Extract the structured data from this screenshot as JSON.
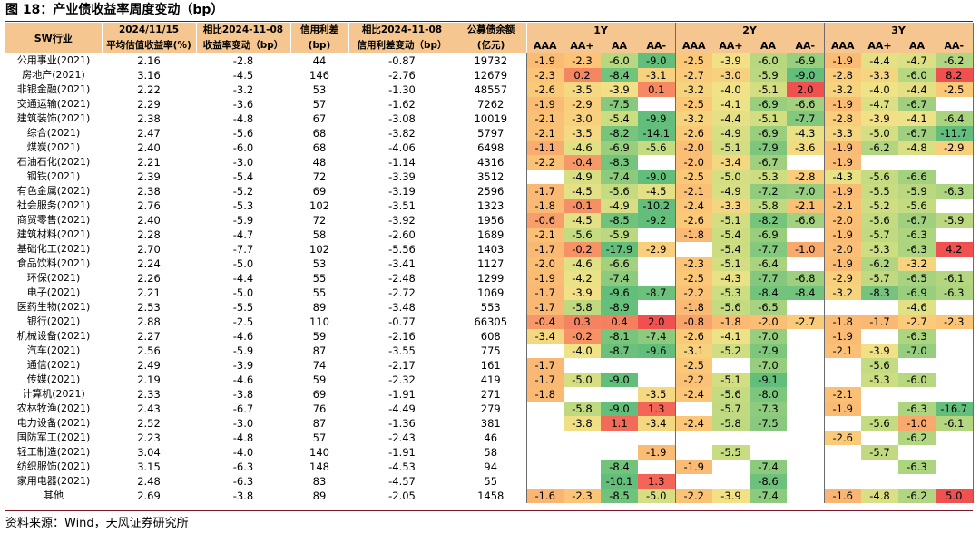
{
  "title": "图 18：产业债收益率周度变动（bp）",
  "source": "资料来源：Wind，天风证券研究所",
  "headers": {
    "industry": "SW行业",
    "col1_line1": "2024/11/15",
    "col1_line2": "平均估值收益率(%)",
    "col2_line1": "相比2024-11-08",
    "col2_line2": "收益率变动（bp）",
    "col3_line1": "信用利差",
    "col3_line2": "(bp)",
    "col4_line1": "相比2024-11-08",
    "col4_line2": "信用利差变动（bp）",
    "col5_line1": "公募债余额",
    "col5_line2": "(亿元)",
    "groups": [
      "1Y",
      "2Y",
      "3Y"
    ],
    "ratings": [
      "AAA",
      "AA+",
      "AA",
      "AA-"
    ]
  },
  "colors": {
    "header": "#f6c690",
    "green_strong": "#5cb85c",
    "yellow": "#f7e08a",
    "orange": "#f6b26b",
    "red": "#f04b4b",
    "rule": "#7a1426"
  },
  "rows": [
    {
      "name": "公用事业(2021)",
      "yield": "2.16",
      "ychg": "-2.8",
      "spread": "44",
      "schg": "-0.87",
      "balance": "19732",
      "y1": [
        "-1.9",
        "-2.3",
        "-6.0",
        "-9.0"
      ],
      "y2": [
        "-2.5",
        "-3.9",
        "-6.0",
        "-6.9"
      ],
      "y3": [
        "-1.9",
        "-4.4",
        "-4.7",
        "-6.2"
      ]
    },
    {
      "name": "房地产(2021)",
      "yield": "3.16",
      "ychg": "-4.5",
      "spread": "146",
      "schg": "-2.76",
      "balance": "12679",
      "y1": [
        "-2.3",
        "0.2",
        "-8.4",
        "-3.1"
      ],
      "y2": [
        "-2.7",
        "-3.0",
        "-5.9",
        "-9.0"
      ],
      "y3": [
        "-2.8",
        "-3.3",
        "-6.0",
        "8.2"
      ]
    },
    {
      "name": "非银金融(2021)",
      "yield": "2.22",
      "ychg": "-3.2",
      "spread": "53",
      "schg": "-1.30",
      "balance": "48557",
      "y1": [
        "-2.6",
        "-3.5",
        "-3.9",
        "0.1"
      ],
      "y2": [
        "-3.2",
        "-4.0",
        "-5.1",
        "2.0"
      ],
      "y3": [
        "-3.2",
        "-4.0",
        "-4.4",
        "-2.5"
      ]
    },
    {
      "name": "交通运输(2021)",
      "yield": "2.29",
      "ychg": "-3.6",
      "spread": "57",
      "schg": "-1.62",
      "balance": "7262",
      "y1": [
        "-1.9",
        "-2.9",
        "-7.5",
        ""
      ],
      "y2": [
        "-2.5",
        "-4.1",
        "-6.9",
        "-6.6"
      ],
      "y3": [
        "-1.9",
        "-4.7",
        "-6.7",
        ""
      ]
    },
    {
      "name": "建筑装饰(2021)",
      "yield": "2.38",
      "ychg": "-4.8",
      "spread": "67",
      "schg": "-3.08",
      "balance": "10019",
      "y1": [
        "-2.1",
        "-3.0",
        "-5.4",
        "-9.9"
      ],
      "y2": [
        "-3.2",
        "-4.4",
        "-5.1",
        "-7.7"
      ],
      "y3": [
        "-2.8",
        "-3.9",
        "-4.1",
        "-6.4"
      ]
    },
    {
      "name": "综合(2021)",
      "yield": "2.47",
      "ychg": "-5.6",
      "spread": "68",
      "schg": "-3.82",
      "balance": "5797",
      "y1": [
        "-2.1",
        "-3.5",
        "-8.2",
        "-14.1"
      ],
      "y2": [
        "-2.6",
        "-4.9",
        "-6.9",
        "-4.3"
      ],
      "y3": [
        "-3.3",
        "-5.0",
        "-6.7",
        "-11.7"
      ]
    },
    {
      "name": "煤炭(2021)",
      "yield": "2.40",
      "ychg": "-6.0",
      "spread": "68",
      "schg": "-4.06",
      "balance": "6498",
      "y1": [
        "-1.1",
        "-4.6",
        "-6.9",
        "-5.6"
      ],
      "y2": [
        "-2.0",
        "-5.1",
        "-7.9",
        "-3.6"
      ],
      "y3": [
        "-1.9",
        "-6.2",
        "-4.8",
        "-2.9"
      ]
    },
    {
      "name": "石油石化(2021)",
      "yield": "2.21",
      "ychg": "-3.0",
      "spread": "48",
      "schg": "-1.14",
      "balance": "4316",
      "y1": [
        "-2.2",
        "-0.4",
        "-8.3",
        ""
      ],
      "y2": [
        "-2.0",
        "-3.4",
        "-6.7",
        ""
      ],
      "y3": [
        "-1.9",
        "",
        "",
        ""
      ]
    },
    {
      "name": "钢铁(2021)",
      "yield": "2.39",
      "ychg": "-5.4",
      "spread": "72",
      "schg": "-3.39",
      "balance": "3512",
      "y1": [
        "",
        "-4.9",
        "-7.4",
        "-9.0"
      ],
      "y2": [
        "-2.5",
        "-5.0",
        "-5.3",
        "-2.8"
      ],
      "y3": [
        "-4.3",
        "-5.6",
        "-6.6",
        ""
      ]
    },
    {
      "name": "有色金属(2021)",
      "yield": "2.38",
      "ychg": "-5.2",
      "spread": "69",
      "schg": "-3.19",
      "balance": "2596",
      "y1": [
        "-1.7",
        "-4.5",
        "-5.6",
        "-4.5"
      ],
      "y2": [
        "-2.1",
        "-4.9",
        "-7.2",
        "-7.0"
      ],
      "y3": [
        "-1.9",
        "-5.5",
        "-5.9",
        "-6.3"
      ]
    },
    {
      "name": "社会服务(2021)",
      "yield": "2.76",
      "ychg": "-5.3",
      "spread": "102",
      "schg": "-3.51",
      "balance": "1323",
      "y1": [
        "-1.8",
        "-0.1",
        "-4.9",
        "-10.2"
      ],
      "y2": [
        "-2.4",
        "-3.3",
        "-5.8",
        "-2.1"
      ],
      "y3": [
        "-2.1",
        "-5.2",
        "-5.6",
        ""
      ]
    },
    {
      "name": "商贸零售(2021)",
      "yield": "2.40",
      "ychg": "-5.9",
      "spread": "72",
      "schg": "-3.92",
      "balance": "1956",
      "y1": [
        "-0.6",
        "-4.5",
        "-8.5",
        "-9.2"
      ],
      "y2": [
        "-2.6",
        "-5.1",
        "-8.2",
        "-6.6"
      ],
      "y3": [
        "-2.0",
        "-5.6",
        "-6.7",
        "-5.9"
      ]
    },
    {
      "name": "建筑材料(2021)",
      "yield": "2.28",
      "ychg": "-4.7",
      "spread": "58",
      "schg": "-2.60",
      "balance": "1689",
      "y1": [
        "-2.1",
        "-5.6",
        "-5.9",
        ""
      ],
      "y2": [
        "-1.8",
        "-5.4",
        "-6.9",
        ""
      ],
      "y3": [
        "-1.9",
        "-5.7",
        "-6.3",
        ""
      ]
    },
    {
      "name": "基础化工(2021)",
      "yield": "2.70",
      "ychg": "-7.7",
      "spread": "102",
      "schg": "-5.56",
      "balance": "1403",
      "y1": [
        "-1.7",
        "-0.2",
        "-17.9",
        "-2.9"
      ],
      "y2": [
        "",
        "-5.4",
        "-7.7",
        "-1.0"
      ],
      "y3": [
        "-2.0",
        "-5.3",
        "-6.3",
        "4.2"
      ]
    },
    {
      "name": "食品饮料(2021)",
      "yield": "2.24",
      "ychg": "-5.0",
      "spread": "53",
      "schg": "-3.41",
      "balance": "1127",
      "y1": [
        "-2.0",
        "-4.6",
        "-6.6",
        ""
      ],
      "y2": [
        "-2.3",
        "-5.1",
        "-6.4",
        ""
      ],
      "y3": [
        "-1.9",
        "-6.2",
        "-3.2",
        ""
      ]
    },
    {
      "name": "环保(2021)",
      "yield": "2.26",
      "ychg": "-4.4",
      "spread": "55",
      "schg": "-2.48",
      "balance": "1299",
      "y1": [
        "-1.9",
        "-4.2",
        "-7.4",
        ""
      ],
      "y2": [
        "-2.5",
        "-4.3",
        "-7.7",
        "-6.8"
      ],
      "y3": [
        "-2.9",
        "-5.7",
        "-6.5",
        "-6.1"
      ]
    },
    {
      "name": "电子(2021)",
      "yield": "2.21",
      "ychg": "-5.0",
      "spread": "55",
      "schg": "-2.72",
      "balance": "1069",
      "y1": [
        "-1.7",
        "-3.9",
        "-9.6",
        "-8.7"
      ],
      "y2": [
        "-2.2",
        "-5.3",
        "-8.4",
        "-8.4"
      ],
      "y3": [
        "-3.2",
        "-8.3",
        "-6.9",
        "-6.3"
      ]
    },
    {
      "name": "医药生物(2021)",
      "yield": "2.53",
      "ychg": "-5.5",
      "spread": "89",
      "schg": "-3.48",
      "balance": "553",
      "y1": [
        "-1.7",
        "-5.8",
        "-8.9",
        ""
      ],
      "y2": [
        "-1.8",
        "-5.6",
        "-6.5",
        ""
      ],
      "y3": [
        "",
        "",
        "-4.6",
        ""
      ]
    },
    {
      "name": "银行(2021)",
      "yield": "2.88",
      "ychg": "-2.5",
      "spread": "110",
      "schg": "-0.77",
      "balance": "66305",
      "y1": [
        "-0.4",
        "0.3",
        "0.4",
        "2.0"
      ],
      "y2": [
        "-0.8",
        "-1.8",
        "-2.0",
        "-2.7"
      ],
      "y3": [
        "-1.8",
        "-1.7",
        "-2.7",
        "-2.3"
      ]
    },
    {
      "name": "机械设备(2021)",
      "yield": "2.27",
      "ychg": "-4.6",
      "spread": "59",
      "schg": "-2.16",
      "balance": "608",
      "y1": [
        "-3.4",
        "-0.2",
        "-8.1",
        "-7.4"
      ],
      "y2": [
        "-2.6",
        "-4.1",
        "-7.0",
        ""
      ],
      "y3": [
        "-1.9",
        "",
        "-6.3",
        ""
      ]
    },
    {
      "name": "汽车(2021)",
      "yield": "2.56",
      "ychg": "-5.9",
      "spread": "87",
      "schg": "-3.55",
      "balance": "775",
      "y1": [
        "",
        "-4.0",
        "-8.7",
        "-9.6"
      ],
      "y2": [
        "-3.1",
        "-5.2",
        "-7.9",
        ""
      ],
      "y3": [
        "-2.1",
        "-3.9",
        "-7.0",
        ""
      ]
    },
    {
      "name": "通信(2021)",
      "yield": "2.49",
      "ychg": "-3.9",
      "spread": "74",
      "schg": "-2.17",
      "balance": "161",
      "y1": [
        "-1.7",
        "",
        "",
        ""
      ],
      "y2": [
        "-2.5",
        "",
        "-7.0",
        ""
      ],
      "y3": [
        "",
        "-5.6",
        "",
        ""
      ]
    },
    {
      "name": "传媒(2021)",
      "yield": "2.19",
      "ychg": "-4.6",
      "spread": "59",
      "schg": "-2.32",
      "balance": "419",
      "y1": [
        "-1.7",
        "-5.0",
        "-9.0",
        ""
      ],
      "y2": [
        "-2.2",
        "-5.1",
        "-9.1",
        ""
      ],
      "y3": [
        "",
        "-5.3",
        "-6.0",
        ""
      ]
    },
    {
      "name": "计算机(2021)",
      "yield": "2.33",
      "ychg": "-3.8",
      "spread": "69",
      "schg": "-1.91",
      "balance": "271",
      "y1": [
        "-1.8",
        "",
        "",
        "-3.5"
      ],
      "y2": [
        "-2.4",
        "-5.6",
        "-8.0",
        ""
      ],
      "y3": [
        "-2.1",
        "",
        "",
        ""
      ]
    },
    {
      "name": "农林牧渔(2021)",
      "yield": "2.43",
      "ychg": "-6.7",
      "spread": "76",
      "schg": "-4.49",
      "balance": "279",
      "y1": [
        "",
        "-5.8",
        "-9.0",
        "1.3"
      ],
      "y2": [
        "",
        "-5.7",
        "-7.3",
        ""
      ],
      "y3": [
        "-1.9",
        "",
        "-6.3",
        "-16.7"
      ]
    },
    {
      "name": "电力设备(2021)",
      "yield": "2.52",
      "ychg": "-3.0",
      "spread": "87",
      "schg": "-1.36",
      "balance": "381",
      "y1": [
        "",
        "-3.8",
        "1.1",
        "-3.4"
      ],
      "y2": [
        "-2.4",
        "-5.8",
        "-7.5",
        ""
      ],
      "y3": [
        "",
        "-5.6",
        "-1.0",
        "-6.1"
      ]
    },
    {
      "name": "国防军工(2021)",
      "yield": "2.23",
      "ychg": "-4.8",
      "spread": "57",
      "schg": "-2.43",
      "balance": "46",
      "y1": [
        "",
        "",
        "",
        ""
      ],
      "y2": [
        "",
        "",
        "",
        ""
      ],
      "y3": [
        "-2.6",
        "",
        "-6.2",
        ""
      ]
    },
    {
      "name": "轻工制造(2021)",
      "yield": "3.04",
      "ychg": "-4.0",
      "spread": "140",
      "schg": "-1.91",
      "balance": "58",
      "y1": [
        "",
        "",
        "",
        "-1.9"
      ],
      "y2": [
        "",
        "-5.5",
        "",
        ""
      ],
      "y3": [
        "",
        "-5.7",
        "",
        ""
      ]
    },
    {
      "name": "纺织服饰(2021)",
      "yield": "3.15",
      "ychg": "-6.3",
      "spread": "148",
      "schg": "-4.53",
      "balance": "94",
      "y1": [
        "",
        "",
        "-8.4",
        ""
      ],
      "y2": [
        "-1.9",
        "",
        "-7.4",
        ""
      ],
      "y3": [
        "",
        "",
        "-6.3",
        ""
      ]
    },
    {
      "name": "家用电器(2021)",
      "yield": "2.48",
      "ychg": "-6.3",
      "spread": "83",
      "schg": "-4.57",
      "balance": "55",
      "y1": [
        "",
        "",
        "-10.1",
        "1.3"
      ],
      "y2": [
        "",
        "",
        "-8.6",
        ""
      ],
      "y3": [
        "",
        "",
        "",
        ""
      ]
    },
    {
      "name": "其他",
      "yield": "2.69",
      "ychg": "-3.8",
      "spread": "89",
      "schg": "-2.05",
      "balance": "1458",
      "y1": [
        "-1.6",
        "-2.3",
        "-8.5",
        "-5.0"
      ],
      "y2": [
        "-2.2",
        "-3.9",
        "-7.4",
        ""
      ],
      "y3": [
        "-1.6",
        "-4.8",
        "-6.2",
        "5.0"
      ]
    }
  ]
}
